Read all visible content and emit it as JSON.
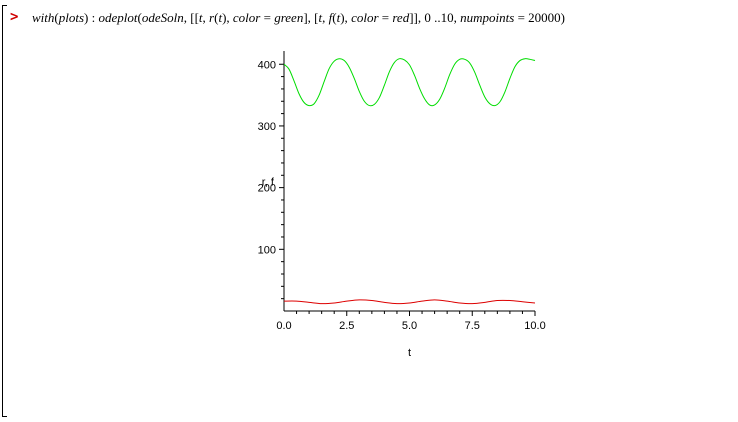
{
  "prompt": {
    "symbol": ">"
  },
  "command": {
    "tokens": [
      {
        "t": "with",
        "i": true
      },
      {
        "t": "(",
        "i": false
      },
      {
        "t": "plots",
        "i": true
      },
      {
        "t": ") : ",
        "i": false
      },
      {
        "t": "odeplot",
        "i": true
      },
      {
        "t": "(",
        "i": false
      },
      {
        "t": "odeSoln",
        "i": true
      },
      {
        "t": ", [[",
        "i": false
      },
      {
        "t": "t",
        "i": true
      },
      {
        "t": ", ",
        "i": false
      },
      {
        "t": "r",
        "i": true
      },
      {
        "t": "(",
        "i": false
      },
      {
        "t": "t",
        "i": true
      },
      {
        "t": "), ",
        "i": false
      },
      {
        "t": "color",
        "i": true
      },
      {
        "t": " = ",
        "i": false
      },
      {
        "t": "green",
        "i": true
      },
      {
        "t": "], [",
        "i": false
      },
      {
        "t": "t",
        "i": true
      },
      {
        "t": ", ",
        "i": false
      },
      {
        "t": "f",
        "i": true
      },
      {
        "t": "(",
        "i": false
      },
      {
        "t": "t",
        "i": true
      },
      {
        "t": "), ",
        "i": false
      },
      {
        "t": "color",
        "i": true
      },
      {
        "t": " = ",
        "i": false
      },
      {
        "t": "red",
        "i": true
      },
      {
        "t": "]], 0 ..10, ",
        "i": false
      },
      {
        "t": "numpoints",
        "i": true
      },
      {
        "t": " = 20000)",
        "i": false
      }
    ]
  },
  "chart_data": {
    "type": "line",
    "xlabel": "t",
    "ylabel": "r, f",
    "xlim": [
      0,
      10
    ],
    "ylim": [
      0,
      415
    ],
    "x_ticks": [
      "0.0",
      "2.5",
      "5.0",
      "7.5",
      "10.0"
    ],
    "y_ticks": [
      "100",
      "200",
      "300",
      "400"
    ],
    "series": [
      {
        "color": "#00dd00",
        "points": [
          [
            0.0,
            400
          ],
          [
            0.2,
            392
          ],
          [
            0.4,
            373
          ],
          [
            0.6,
            352
          ],
          [
            0.8,
            338
          ],
          [
            1.0,
            333
          ],
          [
            1.2,
            336
          ],
          [
            1.4,
            350
          ],
          [
            1.6,
            372
          ],
          [
            1.8,
            393
          ],
          [
            2.0,
            405
          ],
          [
            2.2,
            409
          ],
          [
            2.4,
            406
          ],
          [
            2.6,
            395
          ],
          [
            2.8,
            377
          ],
          [
            3.0,
            356
          ],
          [
            3.2,
            340
          ],
          [
            3.4,
            333
          ],
          [
            3.6,
            335
          ],
          [
            3.8,
            346
          ],
          [
            4.0,
            366
          ],
          [
            4.2,
            388
          ],
          [
            4.4,
            403
          ],
          [
            4.6,
            409
          ],
          [
            4.8,
            407
          ],
          [
            5.0,
            399
          ],
          [
            5.2,
            382
          ],
          [
            5.4,
            361
          ],
          [
            5.6,
            344
          ],
          [
            5.8,
            334
          ],
          [
            6.0,
            334
          ],
          [
            6.2,
            343
          ],
          [
            6.4,
            361
          ],
          [
            6.6,
            383
          ],
          [
            6.8,
            400
          ],
          [
            7.0,
            408
          ],
          [
            7.2,
            408
          ],
          [
            7.4,
            402
          ],
          [
            7.6,
            387
          ],
          [
            7.8,
            366
          ],
          [
            8.0,
            347
          ],
          [
            8.2,
            336
          ],
          [
            8.4,
            333
          ],
          [
            8.6,
            339
          ],
          [
            8.8,
            355
          ],
          [
            9.0,
            377
          ],
          [
            9.2,
            396
          ],
          [
            9.4,
            406
          ],
          [
            9.6,
            409
          ],
          [
            9.8,
            408
          ],
          [
            10.0,
            406
          ]
        ]
      },
      {
        "color": "#dd0000",
        "points": [
          [
            0.0,
            16
          ],
          [
            0.5,
            16
          ],
          [
            1.0,
            14
          ],
          [
            1.5,
            12
          ],
          [
            2.0,
            13
          ],
          [
            2.5,
            16
          ],
          [
            3.0,
            18
          ],
          [
            3.5,
            17
          ],
          [
            4.0,
            14
          ],
          [
            4.5,
            12
          ],
          [
            5.0,
            13
          ],
          [
            5.5,
            16
          ],
          [
            6.0,
            18
          ],
          [
            6.5,
            16
          ],
          [
            7.0,
            13
          ],
          [
            7.5,
            12
          ],
          [
            8.0,
            14
          ],
          [
            8.5,
            17
          ],
          [
            9.0,
            17
          ],
          [
            9.5,
            15
          ],
          [
            10.0,
            13
          ]
        ]
      }
    ]
  }
}
